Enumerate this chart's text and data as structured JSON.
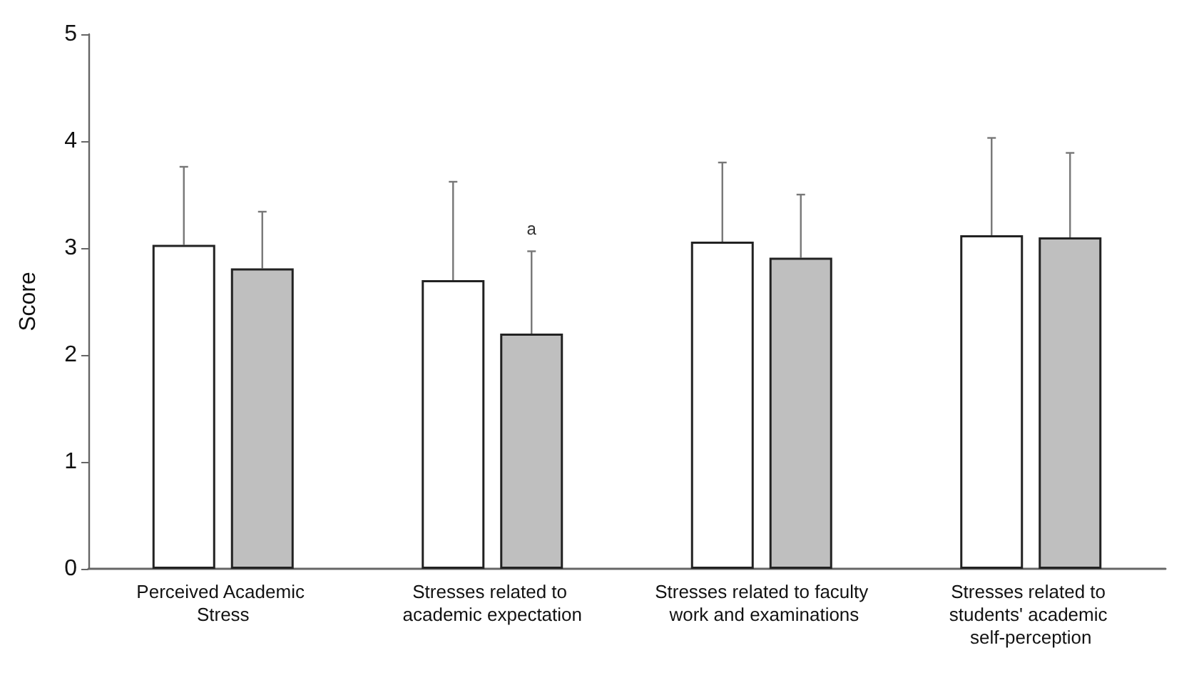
{
  "chart_data": {
    "type": "bar",
    "ylabel": "Score",
    "categories": [
      "Perceived Academic Stress",
      "Stresses related to academic expectation",
      "Stresses related to faculty work and examinations",
      "Stresses related to students' academic self-perception"
    ],
    "series": [
      {
        "color": "#ffffff",
        "values": [
          3.03,
          2.7,
          3.06,
          3.12
        ],
        "errors": [
          [
            3.03,
            3.76
          ],
          [
            2.7,
            3.62
          ],
          [
            3.06,
            3.8
          ],
          [
            3.12,
            4.03
          ]
        ]
      },
      {
        "color": "#bfbfbf",
        "values": [
          2.81,
          2.2,
          2.91,
          3.1
        ],
        "errors": [
          [
            2.81,
            3.34
          ],
          [
            2.2,
            2.97
          ],
          [
            2.91,
            3.5
          ],
          [
            3.1,
            3.89
          ]
        ]
      }
    ],
    "annotations": [
      "a"
    ],
    "ylim": [
      0,
      5
    ],
    "yticks": [
      0,
      1,
      2,
      3,
      4,
      5
    ],
    "grid": false
  }
}
